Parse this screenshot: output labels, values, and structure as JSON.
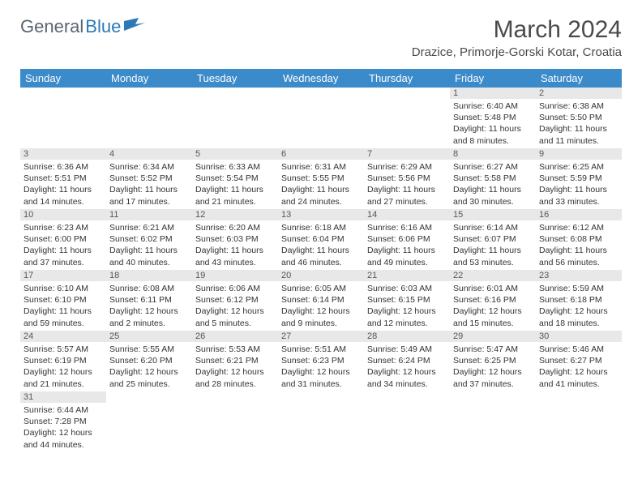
{
  "logo": {
    "text1": "General",
    "text2": "Blue"
  },
  "title": "March 2024",
  "location": "Drazice, Primorje-Gorski Kotar, Croatia",
  "colors": {
    "header_bg": "#3b8aca",
    "header_text": "#ffffff",
    "daynum_bg": "#e8e8e8",
    "logo_gray": "#5a6570",
    "logo_blue": "#2a7ab8",
    "text": "#333333"
  },
  "weekdays": [
    "Sunday",
    "Monday",
    "Tuesday",
    "Wednesday",
    "Thursday",
    "Friday",
    "Saturday"
  ],
  "weeks": [
    [
      {
        "n": "",
        "sr": "",
        "ss": "",
        "dl": ""
      },
      {
        "n": "",
        "sr": "",
        "ss": "",
        "dl": ""
      },
      {
        "n": "",
        "sr": "",
        "ss": "",
        "dl": ""
      },
      {
        "n": "",
        "sr": "",
        "ss": "",
        "dl": ""
      },
      {
        "n": "",
        "sr": "",
        "ss": "",
        "dl": ""
      },
      {
        "n": "1",
        "sr": "Sunrise: 6:40 AM",
        "ss": "Sunset: 5:48 PM",
        "dl": "Daylight: 11 hours and 8 minutes."
      },
      {
        "n": "2",
        "sr": "Sunrise: 6:38 AM",
        "ss": "Sunset: 5:50 PM",
        "dl": "Daylight: 11 hours and 11 minutes."
      }
    ],
    [
      {
        "n": "3",
        "sr": "Sunrise: 6:36 AM",
        "ss": "Sunset: 5:51 PM",
        "dl": "Daylight: 11 hours and 14 minutes."
      },
      {
        "n": "4",
        "sr": "Sunrise: 6:34 AM",
        "ss": "Sunset: 5:52 PM",
        "dl": "Daylight: 11 hours and 17 minutes."
      },
      {
        "n": "5",
        "sr": "Sunrise: 6:33 AM",
        "ss": "Sunset: 5:54 PM",
        "dl": "Daylight: 11 hours and 21 minutes."
      },
      {
        "n": "6",
        "sr": "Sunrise: 6:31 AM",
        "ss": "Sunset: 5:55 PM",
        "dl": "Daylight: 11 hours and 24 minutes."
      },
      {
        "n": "7",
        "sr": "Sunrise: 6:29 AM",
        "ss": "Sunset: 5:56 PM",
        "dl": "Daylight: 11 hours and 27 minutes."
      },
      {
        "n": "8",
        "sr": "Sunrise: 6:27 AM",
        "ss": "Sunset: 5:58 PM",
        "dl": "Daylight: 11 hours and 30 minutes."
      },
      {
        "n": "9",
        "sr": "Sunrise: 6:25 AM",
        "ss": "Sunset: 5:59 PM",
        "dl": "Daylight: 11 hours and 33 minutes."
      }
    ],
    [
      {
        "n": "10",
        "sr": "Sunrise: 6:23 AM",
        "ss": "Sunset: 6:00 PM",
        "dl": "Daylight: 11 hours and 37 minutes."
      },
      {
        "n": "11",
        "sr": "Sunrise: 6:21 AM",
        "ss": "Sunset: 6:02 PM",
        "dl": "Daylight: 11 hours and 40 minutes."
      },
      {
        "n": "12",
        "sr": "Sunrise: 6:20 AM",
        "ss": "Sunset: 6:03 PM",
        "dl": "Daylight: 11 hours and 43 minutes."
      },
      {
        "n": "13",
        "sr": "Sunrise: 6:18 AM",
        "ss": "Sunset: 6:04 PM",
        "dl": "Daylight: 11 hours and 46 minutes."
      },
      {
        "n": "14",
        "sr": "Sunrise: 6:16 AM",
        "ss": "Sunset: 6:06 PM",
        "dl": "Daylight: 11 hours and 49 minutes."
      },
      {
        "n": "15",
        "sr": "Sunrise: 6:14 AM",
        "ss": "Sunset: 6:07 PM",
        "dl": "Daylight: 11 hours and 53 minutes."
      },
      {
        "n": "16",
        "sr": "Sunrise: 6:12 AM",
        "ss": "Sunset: 6:08 PM",
        "dl": "Daylight: 11 hours and 56 minutes."
      }
    ],
    [
      {
        "n": "17",
        "sr": "Sunrise: 6:10 AM",
        "ss": "Sunset: 6:10 PM",
        "dl": "Daylight: 11 hours and 59 minutes."
      },
      {
        "n": "18",
        "sr": "Sunrise: 6:08 AM",
        "ss": "Sunset: 6:11 PM",
        "dl": "Daylight: 12 hours and 2 minutes."
      },
      {
        "n": "19",
        "sr": "Sunrise: 6:06 AM",
        "ss": "Sunset: 6:12 PM",
        "dl": "Daylight: 12 hours and 5 minutes."
      },
      {
        "n": "20",
        "sr": "Sunrise: 6:05 AM",
        "ss": "Sunset: 6:14 PM",
        "dl": "Daylight: 12 hours and 9 minutes."
      },
      {
        "n": "21",
        "sr": "Sunrise: 6:03 AM",
        "ss": "Sunset: 6:15 PM",
        "dl": "Daylight: 12 hours and 12 minutes."
      },
      {
        "n": "22",
        "sr": "Sunrise: 6:01 AM",
        "ss": "Sunset: 6:16 PM",
        "dl": "Daylight: 12 hours and 15 minutes."
      },
      {
        "n": "23",
        "sr": "Sunrise: 5:59 AM",
        "ss": "Sunset: 6:18 PM",
        "dl": "Daylight: 12 hours and 18 minutes."
      }
    ],
    [
      {
        "n": "24",
        "sr": "Sunrise: 5:57 AM",
        "ss": "Sunset: 6:19 PM",
        "dl": "Daylight: 12 hours and 21 minutes."
      },
      {
        "n": "25",
        "sr": "Sunrise: 5:55 AM",
        "ss": "Sunset: 6:20 PM",
        "dl": "Daylight: 12 hours and 25 minutes."
      },
      {
        "n": "26",
        "sr": "Sunrise: 5:53 AM",
        "ss": "Sunset: 6:21 PM",
        "dl": "Daylight: 12 hours and 28 minutes."
      },
      {
        "n": "27",
        "sr": "Sunrise: 5:51 AM",
        "ss": "Sunset: 6:23 PM",
        "dl": "Daylight: 12 hours and 31 minutes."
      },
      {
        "n": "28",
        "sr": "Sunrise: 5:49 AM",
        "ss": "Sunset: 6:24 PM",
        "dl": "Daylight: 12 hours and 34 minutes."
      },
      {
        "n": "29",
        "sr": "Sunrise: 5:47 AM",
        "ss": "Sunset: 6:25 PM",
        "dl": "Daylight: 12 hours and 37 minutes."
      },
      {
        "n": "30",
        "sr": "Sunrise: 5:46 AM",
        "ss": "Sunset: 6:27 PM",
        "dl": "Daylight: 12 hours and 41 minutes."
      }
    ],
    [
      {
        "n": "31",
        "sr": "Sunrise: 6:44 AM",
        "ss": "Sunset: 7:28 PM",
        "dl": "Daylight: 12 hours and 44 minutes."
      },
      {
        "n": "",
        "sr": "",
        "ss": "",
        "dl": ""
      },
      {
        "n": "",
        "sr": "",
        "ss": "",
        "dl": ""
      },
      {
        "n": "",
        "sr": "",
        "ss": "",
        "dl": ""
      },
      {
        "n": "",
        "sr": "",
        "ss": "",
        "dl": ""
      },
      {
        "n": "",
        "sr": "",
        "ss": "",
        "dl": ""
      },
      {
        "n": "",
        "sr": "",
        "ss": "",
        "dl": ""
      }
    ]
  ]
}
